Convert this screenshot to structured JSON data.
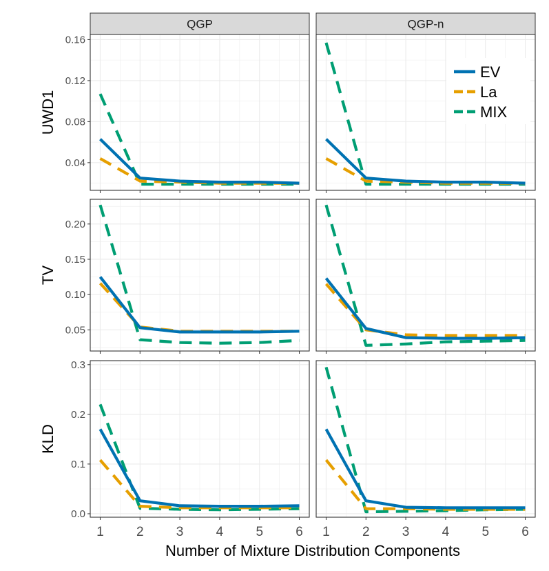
{
  "chart_data": {
    "type": "line",
    "x_axis_title": "Number of Mixture Distribution Components",
    "x": [
      1,
      2,
      3,
      4,
      5,
      6
    ],
    "x_tick_labels": [
      "1",
      "2",
      "3",
      "4",
      "5",
      "6"
    ],
    "xlim": [
      0.75,
      6.25
    ],
    "columns": [
      "QGP",
      "QGP-n"
    ],
    "legend": [
      {
        "key": "EV",
        "label": "EV",
        "color": "#0072B2",
        "dash": "solid"
      },
      {
        "key": "La",
        "label": "La",
        "color": "#E69F00",
        "dash": "dashed"
      },
      {
        "key": "MIX",
        "label": "MIX",
        "color": "#009E73",
        "dash": "dashed"
      }
    ],
    "rows": [
      {
        "label": "UWD1",
        "ylim": [
          0.013,
          0.165
        ],
        "y_ticks": [
          0.04,
          0.08,
          0.12,
          0.16
        ],
        "y_tick_labels": [
          "0.04",
          "0.08",
          "0.12",
          "0.16"
        ],
        "panels": [
          {
            "column": "QGP",
            "series": {
              "EV": [
                0.063,
                0.025,
                0.022,
                0.021,
                0.021,
                0.02
              ],
              "La": [
                0.044,
                0.022,
                0.021,
                0.02,
                0.02,
                0.02
              ],
              "MIX": [
                0.107,
                0.019,
                0.019,
                0.019,
                0.019,
                0.019
              ]
            }
          },
          {
            "column": "QGP-n",
            "series": {
              "EV": [
                0.063,
                0.025,
                0.022,
                0.021,
                0.021,
                0.02
              ],
              "La": [
                0.044,
                0.022,
                0.021,
                0.02,
                0.02,
                0.02
              ],
              "MIX": [
                0.157,
                0.019,
                0.019,
                0.019,
                0.019,
                0.019
              ]
            }
          }
        ]
      },
      {
        "label": "TV",
        "ylim": [
          0.02,
          0.235
        ],
        "y_ticks": [
          0.05,
          0.1,
          0.15,
          0.2
        ],
        "y_tick_labels": [
          "0.05",
          "0.10",
          "0.15",
          "0.20"
        ],
        "panels": [
          {
            "column": "QGP",
            "series": {
              "EV": [
                0.125,
                0.053,
                0.047,
                0.047,
                0.047,
                0.048
              ],
              "La": [
                0.116,
                0.054,
                0.048,
                0.048,
                0.048,
                0.048
              ],
              "MIX": [
                0.227,
                0.036,
                0.032,
                0.031,
                0.032,
                0.035
              ]
            }
          },
          {
            "column": "QGP-n",
            "series": {
              "EV": [
                0.123,
                0.052,
                0.039,
                0.038,
                0.038,
                0.039
              ],
              "La": [
                0.115,
                0.05,
                0.043,
                0.042,
                0.042,
                0.042
              ],
              "MIX": [
                0.227,
                0.028,
                0.03,
                0.033,
                0.034,
                0.035
              ]
            }
          }
        ]
      },
      {
        "label": "KLD",
        "ylim": [
          -0.007,
          0.308
        ],
        "y_ticks": [
          0.0,
          0.1,
          0.2,
          0.3
        ],
        "y_tick_labels": [
          "0.0",
          "0.1",
          "0.2",
          "0.3"
        ],
        "panels": [
          {
            "column": "QGP",
            "series": {
              "EV": [
                0.17,
                0.026,
                0.016,
                0.015,
                0.015,
                0.016
              ],
              "La": [
                0.108,
                0.015,
                0.012,
                0.012,
                0.012,
                0.012
              ],
              "MIX": [
                0.22,
                0.011,
                0.009,
                0.008,
                0.009,
                0.01
              ]
            }
          },
          {
            "column": "QGP-n",
            "series": {
              "EV": [
                0.17,
                0.026,
                0.013,
                0.012,
                0.012,
                0.012
              ],
              "La": [
                0.108,
                0.01,
                0.01,
                0.009,
                0.009,
                0.009
              ],
              "MIX": [
                0.295,
                0.004,
                0.005,
                0.006,
                0.008,
                0.009
              ]
            }
          }
        ]
      }
    ]
  }
}
